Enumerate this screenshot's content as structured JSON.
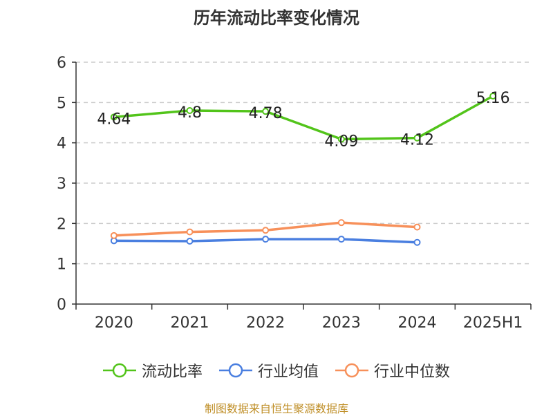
{
  "chart_data": {
    "type": "line",
    "title": "历年流动比率变化情况",
    "categories": [
      "2020",
      "2021",
      "2022",
      "2023",
      "2024",
      "2025H1"
    ],
    "ylim": [
      0,
      6
    ],
    "yticks": [
      0,
      1,
      2,
      3,
      4,
      5,
      6
    ],
    "grid": true,
    "legend_position": "bottom",
    "series": [
      {
        "name": "流动比率",
        "color": "#52c41a",
        "values": [
          4.64,
          4.8,
          4.78,
          4.09,
          4.12,
          5.16
        ],
        "show_labels": true
      },
      {
        "name": "行业均值",
        "color": "#4a7fe0",
        "values": [
          1.57,
          1.56,
          1.61,
          1.61,
          1.53,
          null
        ],
        "show_labels": false
      },
      {
        "name": "行业中位数",
        "color": "#f7905a",
        "values": [
          1.7,
          1.79,
          1.83,
          2.02,
          1.91,
          null
        ],
        "show_labels": false
      }
    ]
  },
  "footer": {
    "source": "制图数据来自恒生聚源数据库"
  }
}
